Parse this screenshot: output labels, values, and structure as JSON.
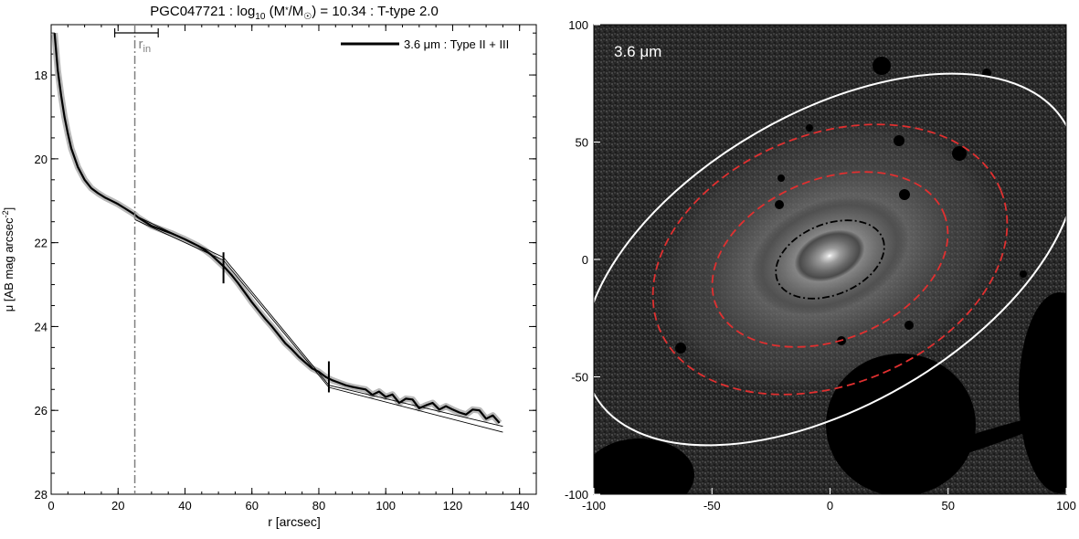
{
  "chart_data": [
    {
      "type": "line",
      "title_parts": [
        "PGC047721 : log",
        "10",
        " (M",
        "*",
        "/M",
        "☉",
        ") = 10.34 : T-type 2.0"
      ],
      "xlabel": "r [arcsec]",
      "ylabel_main": "μ [AB mag arcsec",
      "ylabel_sup": "-2",
      "ylabel_end": "]",
      "xlim": [
        0,
        145
      ],
      "ylim": [
        28,
        16.8
      ],
      "y_inverted": true,
      "xticks": [
        "0",
        "20",
        "40",
        "60",
        "80",
        "100",
        "120",
        "140"
      ],
      "yticks": [
        "18",
        "20",
        "22",
        "24",
        "26",
        "28"
      ],
      "legend": {
        "position": "top-right",
        "label": "3.6 μm : Type II + III"
      },
      "r_in_label": "r",
      "r_in_sub": "in",
      "r_in": 25,
      "r_in_range": [
        19,
        32
      ],
      "breaks": [
        {
          "r": 51.5,
          "mu": 22.6
        },
        {
          "r": 83,
          "mu": 25.2
        }
      ],
      "series": [
        {
          "role": "profile",
          "x": [
            1,
            2,
            3,
            4,
            5,
            6,
            8,
            10,
            12,
            14,
            16,
            18,
            20,
            22,
            24,
            25,
            26,
            28,
            30,
            32,
            34,
            36,
            38,
            40,
            42,
            44,
            46,
            48,
            50,
            52,
            54,
            56,
            58,
            60,
            62,
            64,
            66,
            68,
            70,
            72,
            74,
            76,
            78,
            80,
            82,
            84,
            86,
            88,
            90,
            92,
            94,
            96,
            98,
            100,
            102,
            104,
            106,
            108,
            110,
            112,
            114,
            116,
            118,
            120,
            122,
            124,
            126,
            128,
            130,
            132,
            134
          ],
          "y": [
            17.0,
            17.9,
            18.5,
            19.0,
            19.4,
            19.75,
            20.2,
            20.5,
            20.7,
            20.82,
            20.92,
            21.0,
            21.08,
            21.18,
            21.28,
            21.33,
            21.4,
            21.5,
            21.6,
            21.66,
            21.72,
            21.78,
            21.85,
            21.92,
            22.0,
            22.08,
            22.18,
            22.3,
            22.45,
            22.6,
            22.78,
            22.98,
            23.2,
            23.42,
            23.62,
            23.82,
            24.0,
            24.2,
            24.4,
            24.55,
            24.72,
            24.86,
            25.0,
            25.08,
            25.2,
            25.28,
            25.34,
            25.4,
            25.44,
            25.47,
            25.5,
            25.63,
            25.55,
            25.68,
            25.62,
            25.82,
            25.72,
            25.74,
            25.95,
            25.88,
            25.82,
            25.98,
            25.9,
            25.98,
            26.05,
            26.1,
            25.98,
            26.0,
            26.2,
            26.12,
            26.3
          ],
          "color": "#000000"
        },
        {
          "role": "fit",
          "x": [
            25,
            51.5,
            83,
            135
          ],
          "y": [
            21.45,
            22.42,
            25.45,
            26.52
          ],
          "color": "#000000"
        },
        {
          "role": "fit",
          "x": [
            25,
            51.5,
            83,
            135
          ],
          "y": [
            21.35,
            22.35,
            25.4,
            26.38
          ],
          "color": "#000000"
        }
      ]
    },
    {
      "type": "heatmap",
      "image_label": "3.6 μm",
      "xlim": [
        -100,
        100
      ],
      "ylim": [
        -100,
        100
      ],
      "xticks": [
        "-100",
        "-50",
        "0",
        "50",
        "100"
      ],
      "yticks": [
        "-100",
        "-50",
        "0",
        "50",
        "100"
      ],
      "colors": {
        "background": "#2a2a2a",
        "inner_isophote": "#e03030",
        "outer_isophote": "#ffffff",
        "bar_ellipse": "#000000"
      },
      "ellipses": [
        {
          "role": "outer",
          "cx": 0,
          "cy": 0,
          "a": 115,
          "b": 62,
          "angle_deg": 30,
          "style": "solid",
          "color": "#ffffff"
        },
        {
          "role": "isophote",
          "cx": 0,
          "cy": 0,
          "a": 78,
          "b": 53,
          "angle_deg": 22,
          "style": "dashed",
          "color": "#e03030"
        },
        {
          "role": "isophote",
          "cx": 0,
          "cy": 0,
          "a": 52,
          "b": 34,
          "angle_deg": 22,
          "style": "dashed",
          "color": "#e03030"
        },
        {
          "role": "bar",
          "cx": 0,
          "cy": 0,
          "a": 24,
          "b": 15,
          "angle_deg": 22,
          "style": "dashdot",
          "color": "#000000"
        }
      ]
    }
  ]
}
